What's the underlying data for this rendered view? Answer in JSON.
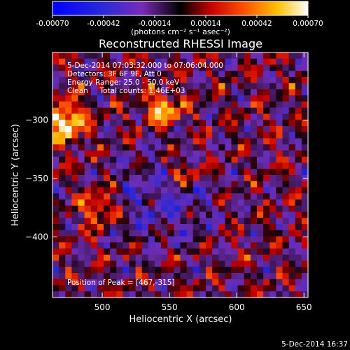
{
  "chart_data": {
    "type": "heatmap",
    "title": "Reconstructed RHESSI Image",
    "xlabel": "Heliocentric X (arcsec)",
    "ylabel": "Heliocentric Y (arcsec)",
    "xlim": [
      463,
      653
    ],
    "ylim": [
      -452,
      -242
    ],
    "x_ticks": [
      500,
      550,
      600,
      650
    ],
    "y_ticks": [
      -300,
      -350,
      -400
    ],
    "colorbar": {
      "ticks": [
        -0.0007,
        -0.00042,
        -0.00014,
        0.00014,
        0.00042,
        0.0007
      ],
      "tick_labels": [
        "-0.00070",
        "-0.00042",
        "-0.00014",
        "0.00014",
        "0.00042",
        "0.00070"
      ],
      "range": [
        -0.0007,
        0.0007
      ],
      "colormap": "rainbow-to-hot (blue, purple, black, red, orange, yellow, white)",
      "unit_label": "(photons cm⁻² s⁻¹ asec⁻²)"
    },
    "annotations": {
      "time_range": "5-Dec-2014 07:03:32.000 to 07:06:04.000",
      "detectors": "Detectors: 3F 6F 9F, Att 0",
      "energy": "Energy Range: 25.0 - 50.0 keV",
      "clean": "Clean     Total counts: 1.46E+03",
      "peak": "Position of Peak = [467,-315]"
    },
    "peak_position": [
      467,
      -315
    ],
    "total_counts": 1460,
    "energy_range_kev": [
      25.0,
      50.0
    ]
  },
  "footer": {
    "timestamp": "5-Dec-2014 16:37"
  },
  "colors": {
    "background": "#000000",
    "foreground": "#ffffff"
  }
}
